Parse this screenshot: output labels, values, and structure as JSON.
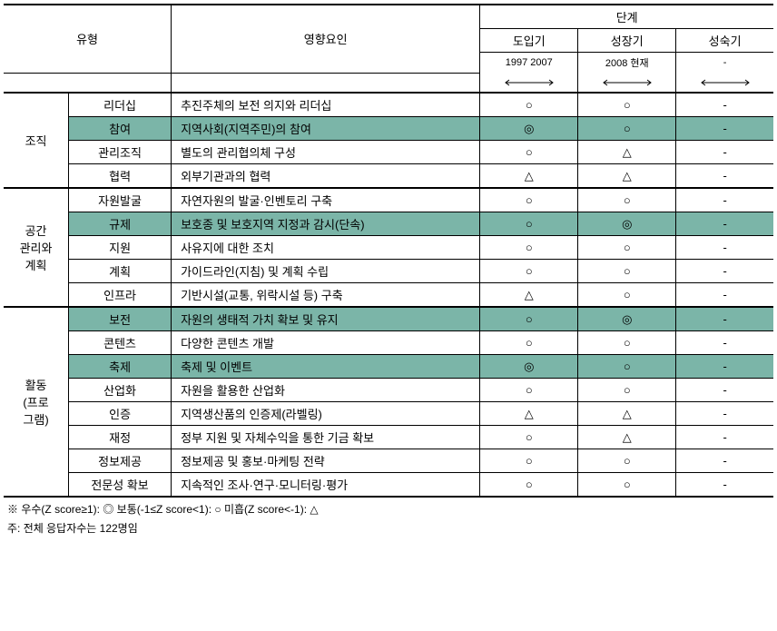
{
  "header": {
    "type_label": "유형",
    "factor_label": "영향요인",
    "stage_label": "단계",
    "intro_label": "도입기",
    "growth_label": "성장기",
    "maturity_label": "성숙기",
    "intro_period": "1997    2007",
    "growth_period": "2008    현재",
    "maturity_period": "-"
  },
  "symbols": {
    "excellent": "◎",
    "normal": "○",
    "poor": "△",
    "dash": "-"
  },
  "groups": [
    {
      "name": "조직",
      "rows": [
        {
          "sub": "리더십",
          "factor": "추진주체의 보전 의지와 리더십",
          "s1": "○",
          "s2": "○",
          "s3": "-",
          "hl": false
        },
        {
          "sub": "참여",
          "factor": "지역사회(지역주민)의 참여",
          "s1": "◎",
          "s2": "○",
          "s3": "-",
          "hl": true
        },
        {
          "sub": "관리조직",
          "factor": "별도의 관리협의체 구성",
          "s1": "○",
          "s2": "△",
          "s3": "-",
          "hl": false
        },
        {
          "sub": "협력",
          "factor": "외부기관과의 협력",
          "s1": "△",
          "s2": "△",
          "s3": "-",
          "hl": false
        }
      ]
    },
    {
      "name": "공간\n관리와\n계획",
      "rows": [
        {
          "sub": "자원발굴",
          "factor": "자연자원의 발굴·인벤토리 구축",
          "s1": "○",
          "s2": "○",
          "s3": "-",
          "hl": false
        },
        {
          "sub": "규제",
          "factor": "보호종 및 보호지역 지정과 감시(단속)",
          "s1": "○",
          "s2": "◎",
          "s3": "-",
          "hl": true
        },
        {
          "sub": "지원",
          "factor": "사유지에 대한 조치",
          "s1": "○",
          "s2": "○",
          "s3": "-",
          "hl": false
        },
        {
          "sub": "계획",
          "factor": "가이드라인(지침) 및 계획 수립",
          "s1": "○",
          "s2": "○",
          "s3": "-",
          "hl": false
        },
        {
          "sub": "인프라",
          "factor": "기반시설(교통, 위락시설 등) 구축",
          "s1": "△",
          "s2": "○",
          "s3": "-",
          "hl": false
        }
      ]
    },
    {
      "name": "활동\n(프로\n그램)",
      "rows": [
        {
          "sub": "보전",
          "factor": "자원의 생태적 가치 확보 및 유지",
          "s1": "○",
          "s2": "◎",
          "s3": "-",
          "hl": true
        },
        {
          "sub": "콘텐츠",
          "factor": "다양한 콘텐츠 개발",
          "s1": "○",
          "s2": "○",
          "s3": "-",
          "hl": false
        },
        {
          "sub": "축제",
          "factor": "축제 및 이벤트",
          "s1": "◎",
          "s2": "○",
          "s3": "-",
          "hl": true
        },
        {
          "sub": "산업화",
          "factor": "자원을 활용한 산업화",
          "s1": "○",
          "s2": "○",
          "s3": "-",
          "hl": false
        },
        {
          "sub": "인증",
          "factor": "지역생산품의 인증제(라벨링)",
          "s1": "△",
          "s2": "△",
          "s3": "-",
          "hl": false
        },
        {
          "sub": "재정",
          "factor": "정부 지원 및 자체수익을 통한 기금 확보",
          "s1": "○",
          "s2": "△",
          "s3": "-",
          "hl": false
        },
        {
          "sub": "정보제공",
          "factor": "정보제공 및 홍보·마케팅 전략",
          "s1": "○",
          "s2": "○",
          "s3": "-",
          "hl": false
        },
        {
          "sub": "전문성 확보",
          "factor": "지속적인 조사·연구·모니터링·평가",
          "s1": "○",
          "s2": "○",
          "s3": "-",
          "hl": false
        }
      ]
    }
  ],
  "footnotes": {
    "line1": "※ 우수(Z score≥1): ◎   보통(-1≤Z score<1): ○   미흡(Z score<-1): △",
    "line2": "주: 전체 응답자수는 122명임"
  },
  "colors": {
    "highlight": "#7bb5a8",
    "border": "#000000",
    "text": "#000000",
    "background": "#ffffff"
  }
}
